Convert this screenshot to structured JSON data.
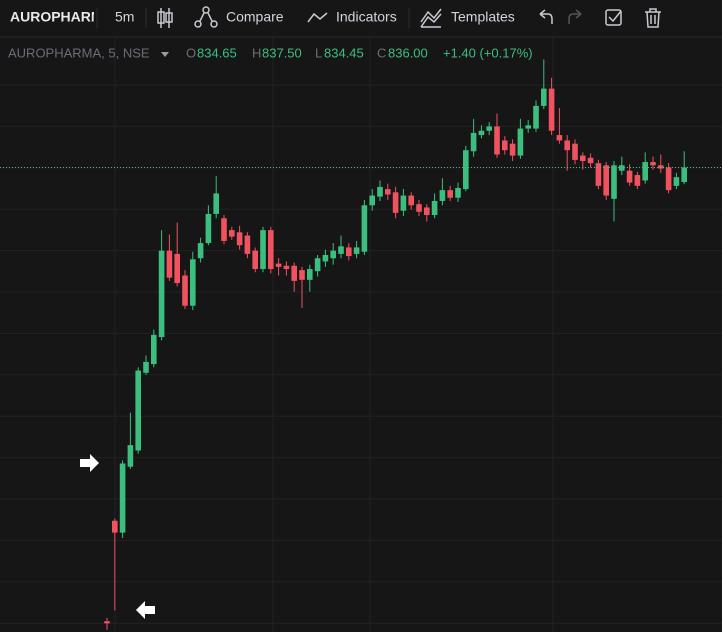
{
  "toolbar": {
    "symbol": "AUROPHARMA",
    "interval": "5m",
    "compare": "Compare",
    "indicators": "Indicators",
    "templates": "Templates"
  },
  "legend": {
    "name": "AUROPHARMA, 5, NSE",
    "o_label": "O",
    "o": "834.65",
    "h_label": "H",
    "h": "837.50",
    "l_label": "L",
    "l": "834.45",
    "c_label": "C",
    "c": "836.00",
    "change": "+1.40 (+0.17%)"
  },
  "chart_data": {
    "type": "candlestick",
    "up_color": "#3cbf7e",
    "down_color": "#f0525f",
    "ylim": [
      793,
      847.8
    ],
    "open": [
      794.0,
      803.3,
      802.2,
      808.3,
      809.8,
      817.0,
      817.8,
      820.3,
      828.3,
      828.0,
      826.0,
      823.2,
      827.6,
      829.0,
      831.7,
      831.3,
      830.2,
      830.0,
      829.7,
      828.3,
      826.6,
      830.2,
      827.1,
      826.9,
      826.9,
      826.5,
      825.6,
      826.4,
      827.3,
      827.6,
      828.0,
      828.6,
      828.0,
      828.2,
      832.5,
      833.3,
      834.0,
      833.7,
      832.0,
      833.4,
      832.6,
      832.3,
      831.6,
      832.9,
      833.9,
      833.2,
      834.0,
      837.5,
      839.0,
      839.4,
      839.8,
      838.5,
      838.2,
      837.1,
      839.6,
      839.6,
      841.7,
      843.3,
      839.0,
      838.5,
      838.2,
      837.1,
      836.9,
      836.4,
      836.2,
      833.1,
      835.7,
      835.7,
      835.3,
      834.8,
      836.5,
      836.2,
      836.0,
      834.3,
      834.65
    ],
    "high": [
      794.3,
      803.5,
      808.9,
      813.3,
      817.5,
      818.6,
      821.0,
      830.2,
      829.8,
      830.9,
      826.5,
      828.2,
      829.5,
      832.5,
      835.2,
      831.6,
      830.5,
      830.6,
      830.0,
      828.6,
      830.5,
      830.5,
      827.6,
      827.3,
      827.2,
      826.8,
      827.0,
      827.9,
      828.4,
      829.0,
      829.7,
      829.0,
      829.2,
      833.0,
      834.0,
      834.8,
      834.5,
      834.2,
      834.0,
      833.7,
      833.0,
      832.6,
      833.6,
      835.0,
      834.3,
      834.6,
      838.0,
      840.5,
      839.9,
      840.2,
      841.0,
      838.9,
      838.6,
      840.5,
      840.4,
      842.2,
      846.0,
      844.3,
      841.5,
      839.0,
      838.6,
      837.4,
      837.3,
      836.7,
      836.5,
      836.6,
      837.0,
      836.3,
      835.6,
      837.4,
      837.0,
      837.2,
      836.4,
      835.5,
      837.5
    ],
    "low": [
      793.2,
      795.0,
      801.7,
      808.1,
      809.5,
      816.8,
      817.5,
      820.0,
      825.5,
      825.0,
      822.9,
      822.8,
      827.2,
      828.8,
      831.3,
      828.9,
      829.3,
      828.4,
      827.6,
      826.3,
      826.3,
      826.2,
      826.0,
      826.0,
      824.5,
      823.0,
      824.5,
      825.9,
      826.8,
      827.0,
      827.6,
      827.4,
      827.6,
      827.9,
      832.0,
      832.9,
      833.0,
      831.3,
      831.5,
      832.1,
      831.5,
      831.0,
      831.3,
      832.5,
      832.9,
      832.8,
      833.8,
      837.0,
      838.7,
      839.0,
      836.9,
      837.2,
      836.6,
      836.8,
      839.2,
      839.3,
      841.4,
      839.0,
      838.2,
      835.7,
      836.3,
      835.8,
      836.0,
      834.0,
      833.0,
      831.0,
      835.3,
      834.3,
      834.0,
      834.5,
      835.8,
      835.5,
      833.6,
      834.0,
      834.45
    ],
    "close": [
      793.8,
      802.2,
      808.6,
      810.3,
      817.2,
      818.0,
      820.5,
      828.3,
      825.8,
      825.3,
      823.2,
      827.5,
      829.0,
      831.7,
      833.6,
      829.2,
      829.6,
      828.8,
      828.0,
      826.6,
      830.2,
      826.6,
      826.8,
      826.6,
      825.5,
      825.6,
      826.6,
      827.6,
      827.9,
      828.3,
      828.7,
      827.8,
      828.6,
      832.5,
      833.4,
      834.2,
      833.5,
      831.8,
      833.4,
      832.5,
      831.9,
      831.6,
      832.9,
      833.9,
      833.2,
      834.1,
      837.6,
      839.2,
      839.4,
      839.8,
      837.2,
      837.6,
      837.1,
      839.6,
      839.9,
      841.7,
      843.3,
      839.4,
      838.5,
      837.6,
      836.7,
      836.6,
      836.4,
      834.3,
      833.4,
      836.2,
      836.2,
      834.6,
      834.3,
      836.5,
      836.2,
      835.9,
      833.9,
      835.1,
      836.0
    ]
  }
}
